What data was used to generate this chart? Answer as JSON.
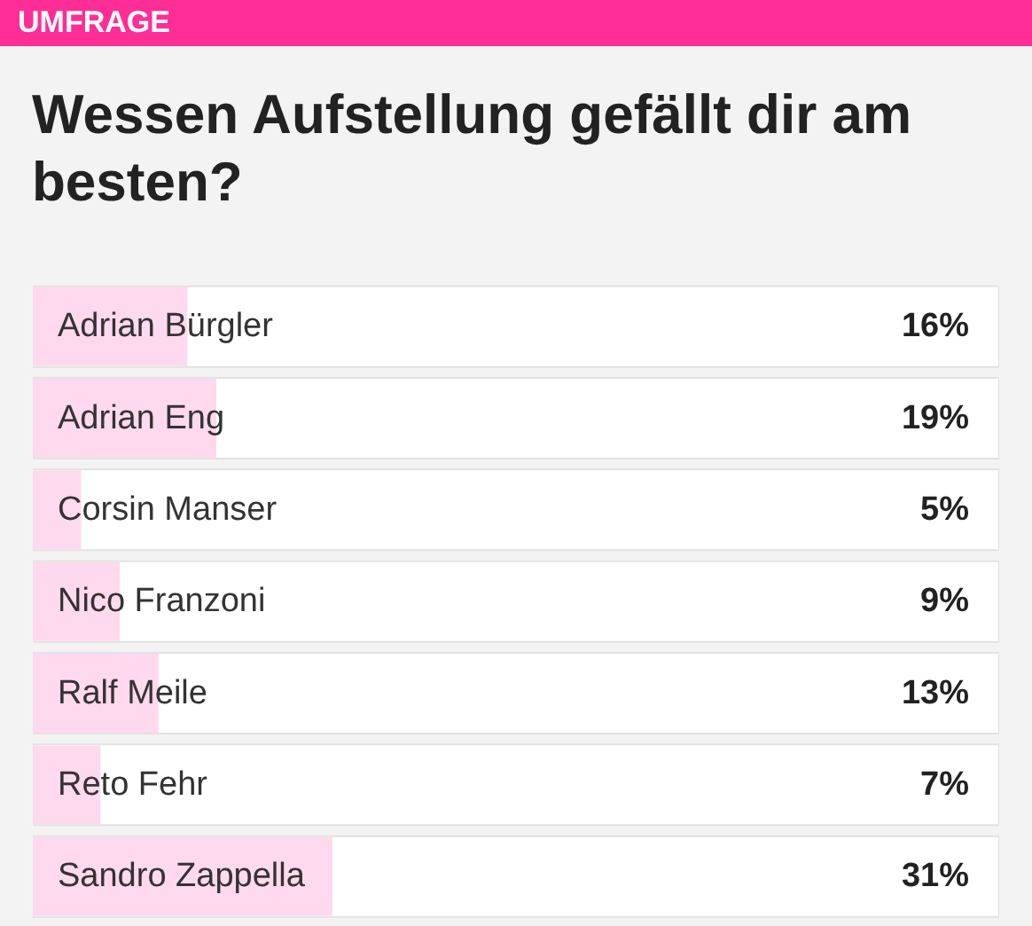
{
  "chart_data": {
    "type": "bar",
    "orientation": "horizontal",
    "title": "Wessen Aufstellung gefällt dir am besten?",
    "annotations": [
      "UMFRAGE"
    ],
    "categories": [
      "Adrian Bürgler",
      "Adrian Eng",
      "Corsin Manser",
      "Nico Franzoni",
      "Ralf Meile",
      "Reto Fehr",
      "Sandro Zappella"
    ],
    "values": [
      16,
      19,
      5,
      9,
      13,
      7,
      31
    ],
    "value_labels": [
      "16%",
      "19%",
      "5%",
      "9%",
      "13%",
      "7%",
      "31%"
    ],
    "color": "#ffd9ee",
    "xlim": [
      0,
      100
    ],
    "grid": false
  }
}
